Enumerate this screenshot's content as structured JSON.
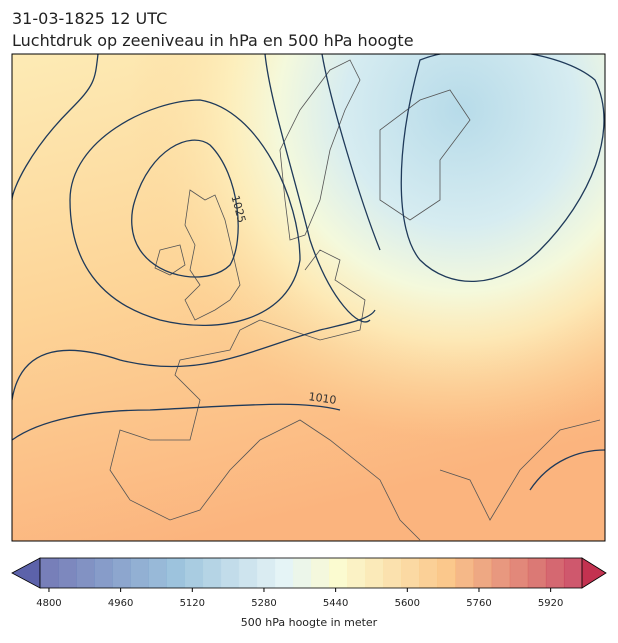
{
  "header": {
    "date": "31-03-1825 12 UTC",
    "title": "Luchtdruk op zeeniveau in hPa en 500 hPa hoogte"
  },
  "contour_labels": [
    "1025",
    "1010"
  ],
  "colorbar": {
    "label": "500 hPa hoogte in meter",
    "lim": [
      4780,
      5990
    ],
    "ticks": [
      4800,
      4960,
      5120,
      5280,
      5440,
      5600,
      5760,
      5920
    ]
  }
}
